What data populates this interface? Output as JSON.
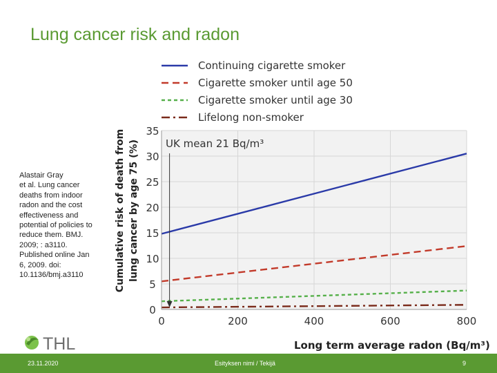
{
  "slide": {
    "title": "Lung cancer risk and radon",
    "citation": "Alastair Gray\n et al. Lung cancer deaths from indoor radon and the cost effectiveness and potential of policies to reduce them. BMJ. 2009; : a3110. Published online Jan 6, 2009. doi: 10.1136/bmj.a3110",
    "logo_text": "THL",
    "footer": {
      "date": "23.11.2020",
      "author": "Esityksen nimi / Tekijä",
      "page": "9"
    }
  },
  "colors": {
    "brand_green": "#5a9a32",
    "continuing": "#2a3aa8",
    "until50": "#c23a2a",
    "until30": "#56b04a",
    "nonsmoker": "#7a2a1a",
    "grid": "#d6d6d6",
    "plot_bg": "#f2f2f2"
  },
  "chart_data": {
    "type": "line",
    "xlabel": "Long term average radon (Bq/m³)",
    "ylabel_line1": "Cumulative risk of death from",
    "ylabel_line2": "lung cancer by age 75 (%)",
    "xlim": [
      0,
      800
    ],
    "ylim": [
      0,
      35
    ],
    "xticks": [
      0,
      200,
      400,
      600,
      800
    ],
    "yticks": [
      0,
      5,
      10,
      15,
      20,
      25,
      30,
      35
    ],
    "grid": true,
    "legend_position": "top",
    "annotation": {
      "text": "UK mean 21 Bq/m³",
      "x": 21
    },
    "x": [
      0,
      800
    ],
    "series": [
      {
        "name": "Continuing cigarette smoker",
        "style": "solid",
        "color_key": "continuing",
        "values": [
          14.8,
          30.5
        ]
      },
      {
        "name": "Cigarette smoker until age 50",
        "style": "dashed",
        "color_key": "until50",
        "values": [
          5.5,
          12.4
        ]
      },
      {
        "name": "Cigarette smoker until age 30",
        "style": "dotted",
        "color_key": "until30",
        "values": [
          1.6,
          3.7
        ]
      },
      {
        "name": "Lifelong non-smoker",
        "style": "dashdot",
        "color_key": "nonsmoker",
        "values": [
          0.4,
          0.9
        ]
      }
    ]
  }
}
